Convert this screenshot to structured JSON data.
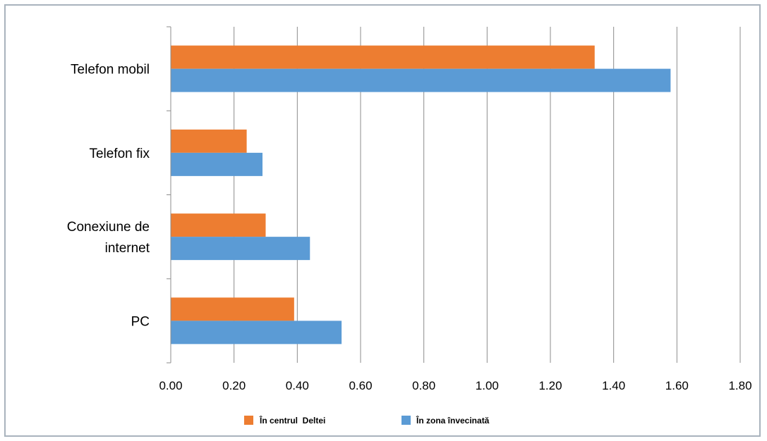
{
  "chart_data": {
    "type": "bar",
    "orientation": "horizontal",
    "categories": [
      "Telefon mobil",
      "Telefon fix",
      "Conexiune de internet",
      "PC"
    ],
    "category_lines": [
      [
        "Telefon mobil"
      ],
      [
        "Telefon fix"
      ],
      [
        "Conexiune de",
        "internet"
      ],
      [
        "PC"
      ]
    ],
    "series": [
      {
        "name": "În centrul  Deltei",
        "values": [
          1.34,
          0.24,
          0.3,
          0.39
        ],
        "color": "#ed7d31"
      },
      {
        "name": "În zona învecinată",
        "values": [
          1.58,
          0.29,
          0.44,
          0.54
        ],
        "color": "#5b9bd5"
      }
    ],
    "xlim": [
      0,
      1.8
    ],
    "xticks": [
      "0.00",
      "0.20",
      "0.40",
      "0.60",
      "0.80",
      "1.00",
      "1.20",
      "1.40",
      "1.60",
      "1.80"
    ],
    "grid": "vertical",
    "legend_position": "bottom",
    "title": "",
    "xlabel": "",
    "ylabel": ""
  }
}
